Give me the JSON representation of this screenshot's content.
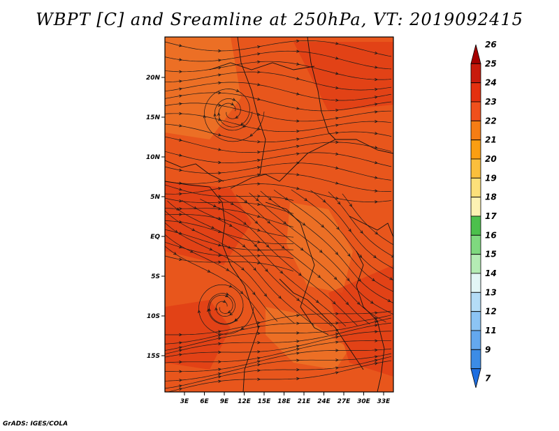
{
  "title": "WBPT [C] and Sreamline at 250hPa, VT: 2019092415",
  "credit": "GrADS: IGES/COLA",
  "map": {
    "lat_labels": [
      "20N",
      "15N",
      "10N",
      "5N",
      "EQ",
      "5S",
      "10S",
      "15S"
    ],
    "lon_labels": [
      "3E",
      "6E",
      "9E",
      "12E",
      "15E",
      "18E",
      "21E",
      "24E",
      "27E",
      "30E",
      "33E"
    ],
    "field_colors": {
      "base": "#e8561c",
      "warm": "#e03a14",
      "cool": "#ee7a2a",
      "line": "#1a1a1a"
    }
  },
  "colorbar": {
    "levels": [
      "26",
      "25",
      "24",
      "23",
      "22",
      "21",
      "20",
      "19",
      "18",
      "17",
      "16",
      "15",
      "14",
      "13",
      "12",
      "11",
      "9",
      "7"
    ],
    "colors": [
      "#a50000",
      "#c81a0c",
      "#e4300f",
      "#f0501c",
      "#f57d14",
      "#fa9e12",
      "#fbbf3c",
      "#fde07a",
      "#fdf2b3",
      "#4cc04c",
      "#7fd97f",
      "#b4ecb4",
      "#e2f6f6",
      "#b4dcf6",
      "#8cc4f4",
      "#64a8ee",
      "#3c8ce6",
      "#1e6ee0"
    ]
  }
}
